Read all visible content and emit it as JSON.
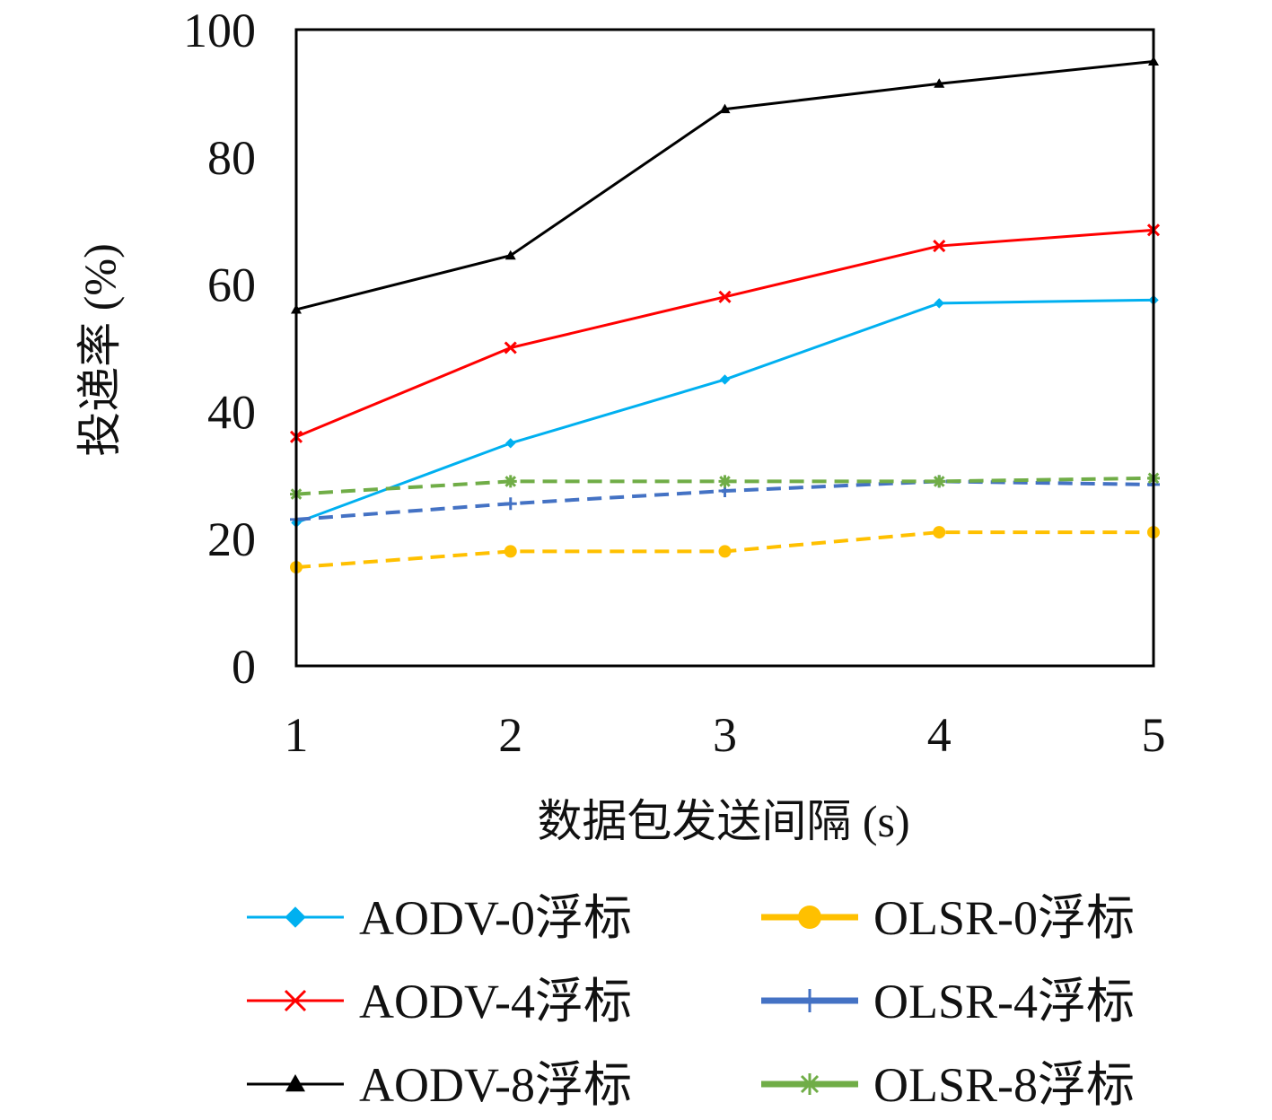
{
  "chart_data": {
    "type": "line",
    "title": "",
    "xlabel": "数据包发送间隔 (s)",
    "ylabel": "投递率 (%)",
    "x": [
      1,
      2,
      3,
      4,
      5
    ],
    "xticks": [
      "1",
      "2",
      "3",
      "4",
      "5"
    ],
    "yticks": [
      "0",
      "20",
      "40",
      "60",
      "80",
      "100"
    ],
    "xlim": [
      1,
      5
    ],
    "ylim": [
      0,
      100
    ],
    "grid": false,
    "legend_position": "bottom",
    "series": [
      {
        "name": "AODV-0浮标",
        "values": [
          22.5,
          35,
          45,
          57,
          57.5
        ],
        "color": "#00b0f0",
        "marker": "diamond",
        "dashed": false
      },
      {
        "name": "AODV-4浮标",
        "values": [
          36,
          50,
          58,
          66,
          68.5
        ],
        "color": "#ff0000",
        "marker": "x",
        "dashed": false
      },
      {
        "name": "AODV-8浮标",
        "values": [
          56,
          64.5,
          87.5,
          91.5,
          95
        ],
        "color": "#000000",
        "marker": "triangle",
        "dashed": false
      },
      {
        "name": "OLSR-0浮标",
        "values": [
          15.5,
          18,
          18,
          21,
          21
        ],
        "color": "#ffc000",
        "marker": "circle",
        "dashed": true
      },
      {
        "name": "OLSR-4浮标",
        "values": [
          23,
          25.5,
          27.5,
          29,
          28.5
        ],
        "color": "#4472c4",
        "marker": "plus",
        "dashed": true
      },
      {
        "name": "OLSR-8浮标",
        "values": [
          27,
          29,
          29,
          29,
          29.5
        ],
        "color": "#70ad47",
        "marker": "star",
        "dashed": true
      }
    ]
  }
}
